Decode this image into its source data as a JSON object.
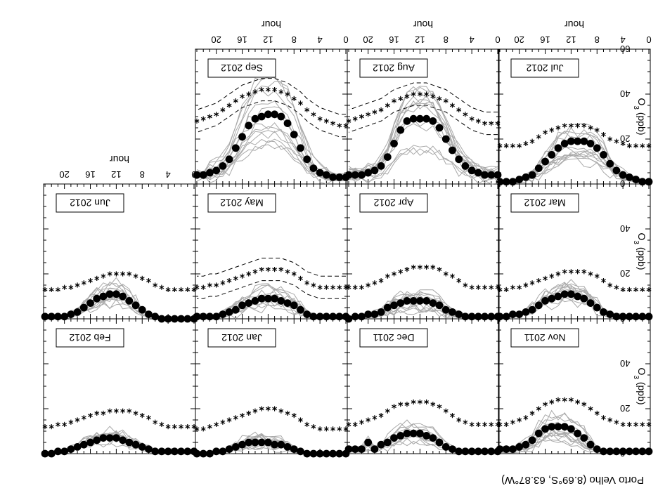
{
  "title": "Porto Velho (8.69°S, 63.87°W)",
  "axis_labels": {
    "x": "hour",
    "y_main": "O",
    "y_sub": "3",
    "y_unit": " (ppb)"
  },
  "chart_data": {
    "type": "line",
    "title": "Porto Velho (8.69°S, 63.87°W)",
    "xlabel": "hour",
    "ylabel": "O3 (ppb)",
    "xlim": [
      0,
      23
    ],
    "ylim": [
      0,
      60
    ],
    "xticks": [
      "0",
      "4",
      "8",
      "12",
      "16",
      "20"
    ],
    "yticks": [
      "0",
      "20",
      "40",
      "60"
    ],
    "panels": [
      {
        "month": "Nov 2011",
        "series": [
          {
            "name": "observed",
            "marker": "circle",
            "values": [
              1,
              1,
              1,
              1,
              1,
              1,
              1,
              1,
              2,
              4,
              7,
              9,
              11,
              12,
              12,
              12,
              11,
              9,
              6,
              4,
              3,
              2,
              2,
              2
            ]
          },
          {
            "name": "model",
            "marker": "asterisk",
            "values": [
              13,
              13,
              13,
              13,
              13,
              14,
              15,
              16,
              18,
              20,
              22,
              23,
              24,
              24,
              24,
              23,
              22,
              20,
              18,
              16,
              15,
              14,
              13,
              13
            ]
          }
        ]
      },
      {
        "name": "Dec 2011",
        "month": "Dec 2011",
        "series": [
          {
            "name": "observed",
            "marker": "circle",
            "values": [
              1,
              1,
              1,
              1,
              1,
              1,
              1,
              2,
              3,
              5,
              7,
              8,
              9,
              9,
              9,
              8,
              7,
              5,
              4,
              2,
              5,
              2,
              2,
              2
            ]
          },
          {
            "name": "model",
            "marker": "asterisk",
            "values": [
              13,
              13,
              13,
              13,
              13,
              14,
              15,
              17,
              19,
              21,
              22,
              23,
              23,
              23,
              22,
              22,
              21,
              19,
              17,
              16,
              15,
              14,
              13,
              13
            ]
          }
        ]
      },
      {
        "month": "Jan 2012",
        "series": [
          {
            "name": "observed",
            "marker": "circle",
            "values": [
              0,
              0,
              0,
              0,
              0,
              0,
              0,
              1,
              2,
              3,
              4,
              4,
              5,
              5,
              5,
              5,
              4,
              3,
              2,
              1,
              1,
              0,
              0,
              0
            ]
          },
          {
            "name": "model",
            "marker": "asterisk",
            "values": [
              11,
              11,
              11,
              11,
              11,
              12,
              13,
              15,
              17,
              18,
              19,
              20,
              20,
              20,
              19,
              18,
              17,
              16,
              15,
              14,
              13,
              12,
              11,
              11
            ]
          }
        ]
      },
      {
        "month": "Feb 2012",
        "series": [
          {
            "name": "observed",
            "marker": "circle",
            "values": [
              1,
              1,
              1,
              1,
              1,
              1,
              1,
              2,
              3,
              4,
              5,
              6,
              7,
              7,
              7,
              6,
              5,
              4,
              3,
              2,
              1,
              1,
              0,
              0
            ]
          },
          {
            "name": "model",
            "marker": "asterisk",
            "values": [
              12,
              12,
              12,
              12,
              12,
              13,
              14,
              16,
              17,
              18,
              19,
              19,
              19,
              19,
              18,
              18,
              17,
              16,
              15,
              14,
              13,
              13,
              12,
              12
            ]
          }
        ]
      },
      {
        "month": "Mar 2012",
        "series": [
          {
            "name": "observed",
            "marker": "circle",
            "values": [
              1,
              1,
              1,
              1,
              1,
              1,
              2,
              3,
              5,
              7,
              9,
              10,
              11,
              11,
              10,
              9,
              8,
              6,
              4,
              3,
              2,
              2,
              1,
              1
            ]
          },
          {
            "name": "model",
            "marker": "asterisk",
            "values": [
              13,
              13,
              13,
              13,
              13,
              14,
              15,
              17,
              19,
              20,
              21,
              21,
              21,
              21,
              20,
              19,
              18,
              17,
              16,
              15,
              14,
              14,
              13,
              13
            ]
          }
        ]
      },
      {
        "month": "Apr 2012",
        "series": [
          {
            "name": "observed",
            "marker": "circle",
            "values": [
              1,
              1,
              1,
              1,
              1,
              1,
              2,
              3,
              4,
              6,
              7,
              8,
              8,
              8,
              8,
              7,
              6,
              5,
              3,
              2,
              2,
              1,
              1,
              0
            ]
          },
          {
            "name": "model",
            "marker": "asterisk",
            "values": [
              14,
              14,
              14,
              14,
              14,
              15,
              17,
              19,
              20,
              22,
              23,
              23,
              23,
              23,
              22,
              21,
              20,
              19,
              17,
              16,
              15,
              14,
              14,
              14
            ]
          }
        ]
      },
      {
        "month": "May 2012",
        "series": [
          {
            "name": "observed",
            "marker": "circle",
            "values": [
              1,
              1,
              1,
              1,
              1,
              1,
              2,
              4,
              6,
              7,
              8,
              9,
              9,
              9,
              8,
              7,
              6,
              4,
              3,
              2,
              1,
              1,
              1,
              1
            ]
          },
          {
            "name": "model",
            "marker": "asterisk",
            "values": [
              14,
              14,
              14,
              14,
              14,
              15,
              16,
              18,
              20,
              21,
              22,
              22,
              22,
              22,
              21,
              20,
              19,
              18,
              17,
              16,
              15,
              15,
              14,
              14
            ]
          }
        ]
      },
      {
        "month": "Jun 2012",
        "series": [
          {
            "name": "observed",
            "marker": "circle",
            "values": [
              0,
              0,
              0,
              0,
              0,
              0,
              1,
              2,
              4,
              6,
              8,
              10,
              11,
              11,
              10,
              9,
              7,
              5,
              3,
              2,
              1,
              1,
              1,
              1
            ]
          },
          {
            "name": "model",
            "marker": "asterisk",
            "values": [
              13,
              13,
              13,
              13,
              13,
              14,
              15,
              17,
              18,
              19,
              20,
              20,
              20,
              20,
              19,
              18,
              17,
              16,
              15,
              14,
              14,
              13,
              13,
              13
            ]
          }
        ]
      },
      {
        "month": "Jul 2012",
        "series": [
          {
            "name": "observed",
            "marker": "circle",
            "values": [
              1,
              1,
              2,
              3,
              4,
              6,
              9,
              13,
              16,
              18,
              19,
              19,
              19,
              18,
              16,
              13,
              10,
              7,
              4,
              3,
              2,
              1,
              1,
              1
            ]
          },
          {
            "name": "model",
            "marker": "asterisk",
            "values": [
              17,
              17,
              17,
              17,
              18,
              19,
              20,
              22,
              24,
              25,
              26,
              26,
              26,
              26,
              25,
              24,
              23,
              21,
              19,
              18,
              17,
              17,
              17,
              17
            ]
          }
        ]
      },
      {
        "month": "Aug 2012",
        "series": [
          {
            "name": "observed",
            "marker": "circle",
            "values": [
              4,
              4,
              4,
              5,
              6,
              8,
              11,
              15,
              20,
              25,
              28,
              29,
              29,
              29,
              28,
              24,
              18,
              12,
              8,
              6,
              5,
              4,
              4,
              4
            ]
          },
          {
            "name": "model",
            "marker": "asterisk",
            "values": [
              27,
              27,
              27,
              28,
              29,
              31,
              33,
              35,
              37,
              38,
              39,
              40,
              40,
              40,
              39,
              38,
              37,
              35,
              33,
              32,
              31,
              30,
              29,
              28
            ]
          }
        ]
      },
      {
        "month": "Sep 2012",
        "series": [
          {
            "name": "observed",
            "marker": "circle",
            "values": [
              3,
              3,
              3,
              4,
              5,
              7,
              11,
              16,
              22,
              27,
              30,
              31,
              31,
              30,
              29,
              26,
              21,
              16,
              11,
              8,
              6,
              5,
              4,
              4
            ]
          },
          {
            "name": "model",
            "marker": "asterisk",
            "values": [
              26,
              26,
              27,
              28,
              29,
              31,
              33,
              36,
              38,
              40,
              41,
              42,
              42,
              42,
              41,
              40,
              39,
              37,
              35,
              33,
              31,
              30,
              29,
              28
            ]
          }
        ]
      }
    ]
  }
}
